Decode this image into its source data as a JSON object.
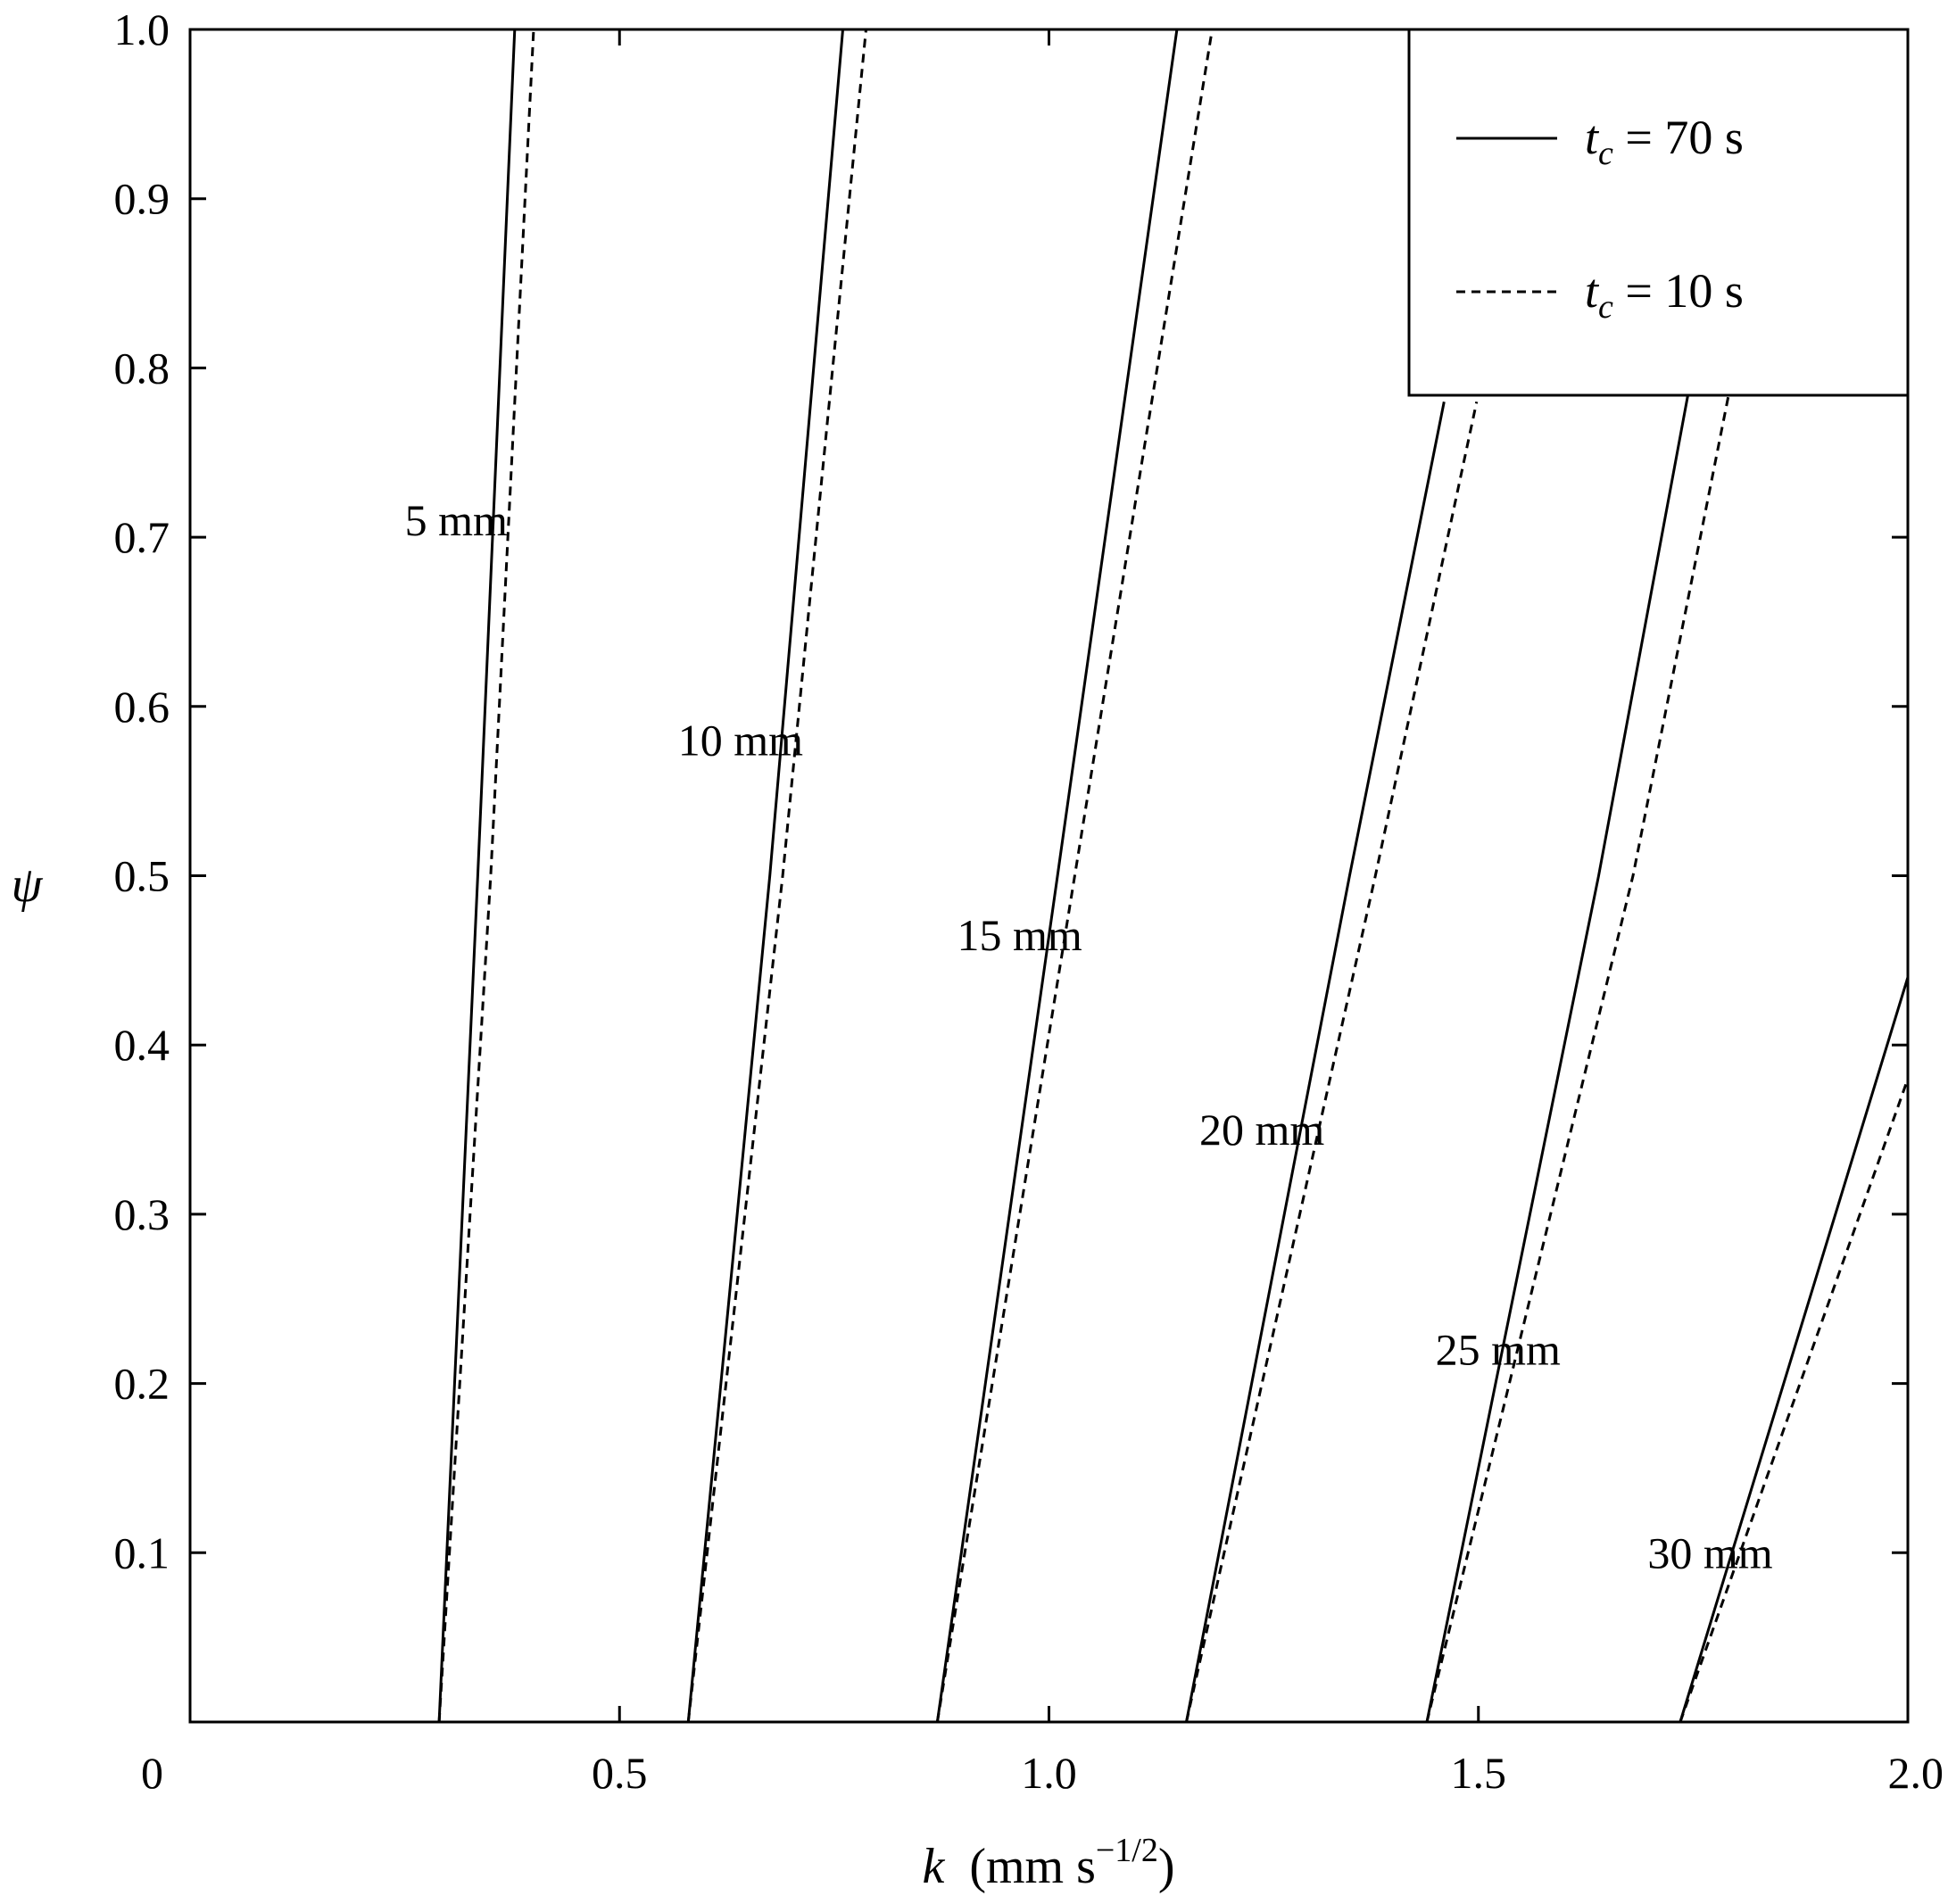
{
  "chart_data": {
    "type": "line",
    "xlabel": {
      "var": "k",
      "unit_pre": "(mm s",
      "unit_sup": "−1/2",
      "unit_post": ")"
    },
    "ylabel": "ψ",
    "xlim": [
      0,
      2.0
    ],
    "ylim": [
      0,
      1.0
    ],
    "x_ticks": [
      {
        "value": 0,
        "label": "0"
      },
      {
        "value": 0.5,
        "label": "0.5"
      },
      {
        "value": 1.0,
        "label": "1.0"
      },
      {
        "value": 1.5,
        "label": "1.5"
      },
      {
        "value": 2.0,
        "label": "2.0"
      }
    ],
    "y_ticks": [
      {
        "value": 0.1,
        "label": "0.1"
      },
      {
        "value": 0.2,
        "label": "0.2"
      },
      {
        "value": 0.3,
        "label": "0.3"
      },
      {
        "value": 0.4,
        "label": "0.4"
      },
      {
        "value": 0.5,
        "label": "0.5"
      },
      {
        "value": 0.6,
        "label": "0.6"
      },
      {
        "value": 0.7,
        "label": "0.7"
      },
      {
        "value": 0.8,
        "label": "0.8"
      },
      {
        "value": 0.9,
        "label": "0.9"
      },
      {
        "value": 1.0,
        "label": "1.0"
      }
    ],
    "grid": false,
    "legend_position": "top-right",
    "legend": [
      {
        "style": "solid",
        "var": "t",
        "sub": "c",
        "rest": " = 70  s"
      },
      {
        "style": "dashed",
        "var": "t",
        "sub": "c",
        "rest": " = 10  s"
      }
    ],
    "series": [
      {
        "group": "5 mm",
        "style": "solid",
        "points": [
          [
            0.29,
            0.0
          ],
          [
            0.335,
            0.5
          ],
          [
            0.378,
            1.0
          ]
        ]
      },
      {
        "group": "5 mm",
        "style": "dashed",
        "points": [
          [
            0.29,
            0.0
          ],
          [
            0.35,
            0.5
          ],
          [
            0.4,
            1.0
          ]
        ]
      },
      {
        "group": "10 mm",
        "style": "solid",
        "points": [
          [
            0.58,
            0.0
          ],
          [
            0.675,
            0.5
          ],
          [
            0.76,
            1.0
          ]
        ]
      },
      {
        "group": "10 mm",
        "style": "dashed",
        "points": [
          [
            0.58,
            0.0
          ],
          [
            0.69,
            0.5
          ],
          [
            0.787,
            1.0
          ]
        ]
      },
      {
        "group": "15 mm",
        "style": "solid",
        "points": [
          [
            0.87,
            0.0
          ],
          [
            1.01,
            0.5
          ],
          [
            1.149,
            1.0
          ]
        ]
      },
      {
        "group": "15 mm",
        "style": "dashed",
        "points": [
          [
            0.87,
            0.0
          ],
          [
            1.03,
            0.5
          ],
          [
            1.19,
            1.0
          ]
        ]
      },
      {
        "group": "20 mm",
        "style": "solid",
        "points": [
          [
            1.16,
            0.0
          ],
          [
            1.35,
            0.5
          ],
          [
            1.46,
            0.78
          ]
        ]
      },
      {
        "group": "20 mm",
        "style": "dashed",
        "points": [
          [
            1.16,
            0.0
          ],
          [
            1.38,
            0.5
          ],
          [
            1.498,
            0.78
          ]
        ]
      },
      {
        "group": "25 mm",
        "style": "solid",
        "points": [
          [
            1.44,
            0.0
          ],
          [
            1.64,
            0.5
          ],
          [
            1.823,
            1.0
          ]
        ]
      },
      {
        "group": "25 mm",
        "style": "dashed",
        "points": [
          [
            1.44,
            0.0
          ],
          [
            1.68,
            0.5
          ],
          [
            1.876,
            1.0
          ]
        ]
      },
      {
        "group": "30 mm",
        "style": "solid",
        "points": [
          [
            1.735,
            0.0
          ],
          [
            2.0,
            0.44
          ]
        ]
      },
      {
        "group": "30 mm",
        "style": "dashed",
        "points": [
          [
            1.735,
            0.0
          ],
          [
            2.0,
            0.38
          ]
        ]
      }
    ],
    "annotations": [
      {
        "text": "5 mm",
        "x": 0.25,
        "y": 0.71
      },
      {
        "text": "10 mm",
        "x": 0.568,
        "y": 0.58
      },
      {
        "text": "15 mm",
        "x": 0.893,
        "y": 0.465
      },
      {
        "text": "20 mm",
        "x": 1.175,
        "y": 0.35
      },
      {
        "text": "25 mm",
        "x": 1.45,
        "y": 0.22
      },
      {
        "text": "30 mm",
        "x": 1.697,
        "y": 0.1
      }
    ]
  }
}
